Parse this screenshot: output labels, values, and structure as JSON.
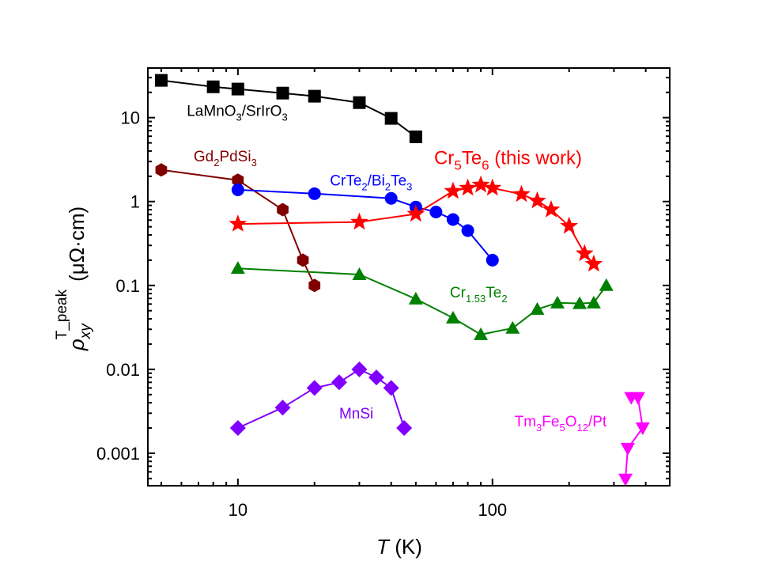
{
  "chart_data": {
    "type": "scatter",
    "title": "",
    "xlabel": "T (K)",
    "xlabel_italic": "T",
    "xlabel_unit": " (K)",
    "ylabel": "ρxy^T_peak (μΩ·cm)",
    "ylabel_main": "ρ",
    "ylabel_sub": "xy",
    "ylabel_sup": "T_peak",
    "ylabel_unit": "(μΩ·cm)",
    "xscale": "log",
    "yscale": "log",
    "xlim": [
      4.43,
      497
    ],
    "ylim": [
      0.00041,
      39
    ],
    "xticks": [
      10,
      100
    ],
    "xtick_labels": [
      "10",
      "100"
    ],
    "yticks": [
      0.001,
      0.01,
      0.1,
      1,
      10
    ],
    "ytick_labels": [
      "0.001",
      "0.01",
      "0.1",
      "1",
      "10"
    ],
    "grid": false,
    "legend": "none (inline labels)",
    "series": [
      {
        "name": "LaMnO3/SrIrO3",
        "label_parts": [
          [
            "LaMnO",
            ""
          ],
          [
            "3",
            "sub"
          ],
          [
            "/SrIrO",
            ""
          ],
          [
            "3",
            "sub"
          ]
        ],
        "color": "#000000",
        "marker": "square",
        "x": [
          5,
          8,
          10,
          15,
          20,
          30,
          40,
          50
        ],
        "y": [
          27.8,
          23.3,
          21.9,
          19.6,
          18.0,
          15.1,
          9.8,
          5.9
        ]
      },
      {
        "name": "Gd2PdSi3",
        "label_parts": [
          [
            "Gd",
            ""
          ],
          [
            "2",
            "sub"
          ],
          [
            "PdSi",
            ""
          ],
          [
            "3",
            "sub"
          ]
        ],
        "color": "#800000",
        "marker": "hexagon",
        "x": [
          5,
          10,
          15,
          18,
          20
        ],
        "y": [
          2.38,
          1.8,
          0.8,
          0.2,
          0.1
        ]
      },
      {
        "name": "CrTe2/Bi2Te3",
        "label_parts": [
          [
            "CrTe",
            ""
          ],
          [
            "2",
            "sub"
          ],
          [
            "/Bi",
            ""
          ],
          [
            "2",
            "sub"
          ],
          [
            "Te",
            ""
          ],
          [
            "3",
            "sub"
          ]
        ],
        "color": "#0000FF",
        "marker": "circle",
        "x": [
          10,
          20,
          40,
          50,
          60,
          70,
          80,
          100
        ],
        "y": [
          1.38,
          1.24,
          1.09,
          0.86,
          0.75,
          0.61,
          0.45,
          0.2
        ]
      },
      {
        "name": "Cr5Te6 (this work)",
        "label_parts": [
          [
            "Cr",
            ""
          ],
          [
            "5",
            "sub"
          ],
          [
            "Te",
            ""
          ],
          [
            "6",
            "sub"
          ],
          [
            " (this work)",
            ""
          ]
        ],
        "color": "#FF0000",
        "marker": "star",
        "x": [
          10,
          30,
          50,
          70,
          80,
          90,
          100,
          130,
          150,
          170,
          200,
          230,
          250
        ],
        "y": [
          0.54,
          0.57,
          0.71,
          1.33,
          1.45,
          1.58,
          1.45,
          1.22,
          1.02,
          0.8,
          0.51,
          0.24,
          0.18
        ]
      },
      {
        "name": "Cr1.53Te2",
        "label_parts": [
          [
            "Cr",
            ""
          ],
          [
            "1.53",
            "sub"
          ],
          [
            "Te",
            ""
          ],
          [
            "2",
            "sub"
          ]
        ],
        "color": "#008000",
        "marker": "triangle-up",
        "x": [
          10,
          30,
          50,
          70,
          90,
          120,
          150,
          180,
          220,
          250,
          280
        ],
        "y": [
          0.16,
          0.135,
          0.069,
          0.041,
          0.026,
          0.031,
          0.052,
          0.062,
          0.061,
          0.062,
          0.1
        ]
      },
      {
        "name": "MnSi",
        "label_parts": [
          [
            "MnSi",
            ""
          ]
        ],
        "color": "#8000FF",
        "marker": "diamond",
        "x": [
          10,
          15,
          20,
          25,
          30,
          35,
          40,
          45
        ],
        "y": [
          0.002,
          0.0035,
          0.006,
          0.007,
          0.01,
          0.008,
          0.006,
          0.002
        ]
      },
      {
        "name": "Tm3Fe5O12/Pt",
        "label_parts": [
          [
            "Tm",
            ""
          ],
          [
            "3",
            "sub"
          ],
          [
            "Fe",
            ""
          ],
          [
            "5",
            "sub"
          ],
          [
            "O",
            ""
          ],
          [
            "12",
            "sub"
          ],
          [
            "/Pt",
            ""
          ]
        ],
        "color": "#FF00FF",
        "marker": "triangle-down",
        "x": [
          351,
          373,
          389,
          340,
          333
        ],
        "y": [
          0.0046,
          0.0046,
          0.002,
          0.00114,
          0.00049
        ]
      }
    ],
    "annotations": [
      {
        "series": "LaMnO3/SrIrO3",
        "text": "LaMnO3/SrIrO3",
        "x": 6.3,
        "y": 10.5
      },
      {
        "series": "Gd2PdSi3",
        "text": "Gd2PdSi3",
        "x": 6.7,
        "y": 3.0
      },
      {
        "series": "CrTe2/Bi2Te3",
        "text": "CrTe2/Bi2Te3",
        "x": 23,
        "y": 1.55
      },
      {
        "series": "Cr5Te6 (this work)",
        "text": "Cr5Te6 (this work)",
        "x": 59,
        "y": 2.8
      },
      {
        "series": "Cr1.53Te2",
        "text": "Cr1.53Te2",
        "x": 68,
        "y": 0.072
      },
      {
        "series": "MnSi",
        "text": "MnSi",
        "x": 25,
        "y": 0.0026
      },
      {
        "series": "Tm3Fe5O12/Pt",
        "text": "Tm3Fe5O12/Pt",
        "x": 122,
        "y": 0.0021
      }
    ]
  }
}
